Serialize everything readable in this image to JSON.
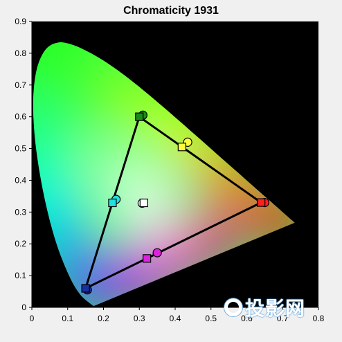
{
  "chart_data": {
    "type": "scatter",
    "title": "Chromaticity 1931",
    "xlabel": "",
    "ylabel": "",
    "xlim": [
      0,
      0.8
    ],
    "ylim": [
      0,
      0.9
    ],
    "x_ticks": [
      "0",
      "0.1",
      "0.2",
      "0.3",
      "0.4",
      "0.5",
      "0.6",
      "0.7",
      "0.8"
    ],
    "y_ticks": [
      "0",
      "0.1",
      "0.2",
      "0.3",
      "0.4",
      "0.5",
      "0.6",
      "0.7",
      "0.8",
      "0.9"
    ],
    "grid": false,
    "background": "#000000",
    "target_triangle": [
      {
        "x": 0.64,
        "y": 0.33
      },
      {
        "x": 0.3,
        "y": 0.6
      },
      {
        "x": 0.15,
        "y": 0.06
      }
    ],
    "measured_points": [
      {
        "name": "red",
        "color": "#ff2020",
        "x": 0.65,
        "y": 0.33
      },
      {
        "name": "green",
        "color": "#1a8a1a",
        "x": 0.31,
        "y": 0.605
      },
      {
        "name": "blue",
        "color": "#1a2fa0",
        "x": 0.155,
        "y": 0.055
      },
      {
        "name": "cyan",
        "color": "#20e0e0",
        "x": 0.235,
        "y": 0.34
      },
      {
        "name": "magenta",
        "color": "#e020e0",
        "x": 0.35,
        "y": 0.172
      },
      {
        "name": "yellow",
        "color": "#ffff40",
        "x": 0.435,
        "y": 0.52
      },
      {
        "name": "white",
        "color": "#ffffff",
        "x": 0.308,
        "y": 0.328
      }
    ],
    "target_points": [
      {
        "name": "red",
        "color": "#ff2020",
        "x": 0.64,
        "y": 0.33
      },
      {
        "name": "green",
        "color": "#1a8a1a",
        "x": 0.3,
        "y": 0.6
      },
      {
        "name": "blue",
        "color": "#1a2fa0",
        "x": 0.15,
        "y": 0.06
      },
      {
        "name": "cyan",
        "color": "#20e0e0",
        "x": 0.225,
        "y": 0.329
      },
      {
        "name": "magenta",
        "color": "#e020e0",
        "x": 0.321,
        "y": 0.154
      },
      {
        "name": "yellow",
        "color": "#ffff40",
        "x": 0.419,
        "y": 0.505
      },
      {
        "name": "white",
        "color": "#ffffff",
        "x": 0.3127,
        "y": 0.329
      }
    ]
  },
  "watermark": {
    "text": "投影网",
    "icon": "projector-logo-icon"
  }
}
